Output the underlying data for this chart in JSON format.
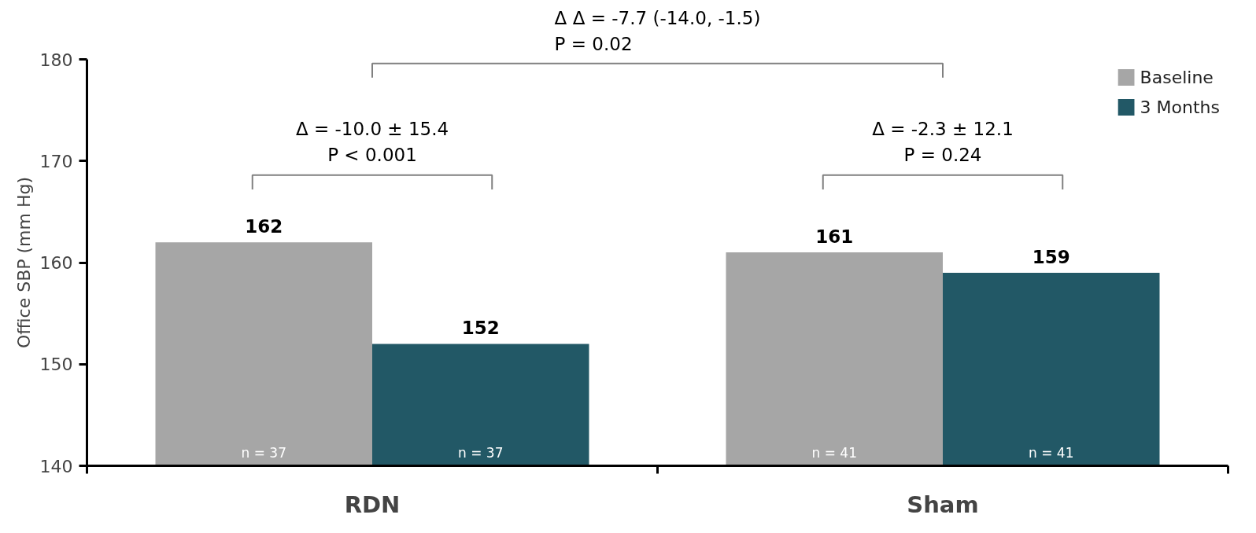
{
  "chart_data": {
    "type": "bar",
    "categories": [
      "RDN",
      "Sham"
    ],
    "series": [
      {
        "name": "Baseline",
        "color": "#a6a6a6",
        "values": [
          162,
          161
        ]
      },
      {
        "name": "3 Months",
        "color": "#225866",
        "values": [
          152,
          159
        ]
      }
    ],
    "ylim": [
      140,
      180
    ],
    "yticks": [
      140,
      150,
      160,
      170,
      180
    ],
    "ylabel": "Office SBP (mm Hg)",
    "data_labels": true,
    "legend": "top right",
    "annotations": [
      "Δ Δ = -7.7 (-14.0, -1.5)\nP = 0.02",
      "Δ = -10.0 ± 15.4\nP < 0.001",
      "Δ = -2.3 ± 12.1\nP = 0.24",
      "n = 37",
      "n = 37",
      "n = 41",
      "n = 41"
    ]
  }
}
